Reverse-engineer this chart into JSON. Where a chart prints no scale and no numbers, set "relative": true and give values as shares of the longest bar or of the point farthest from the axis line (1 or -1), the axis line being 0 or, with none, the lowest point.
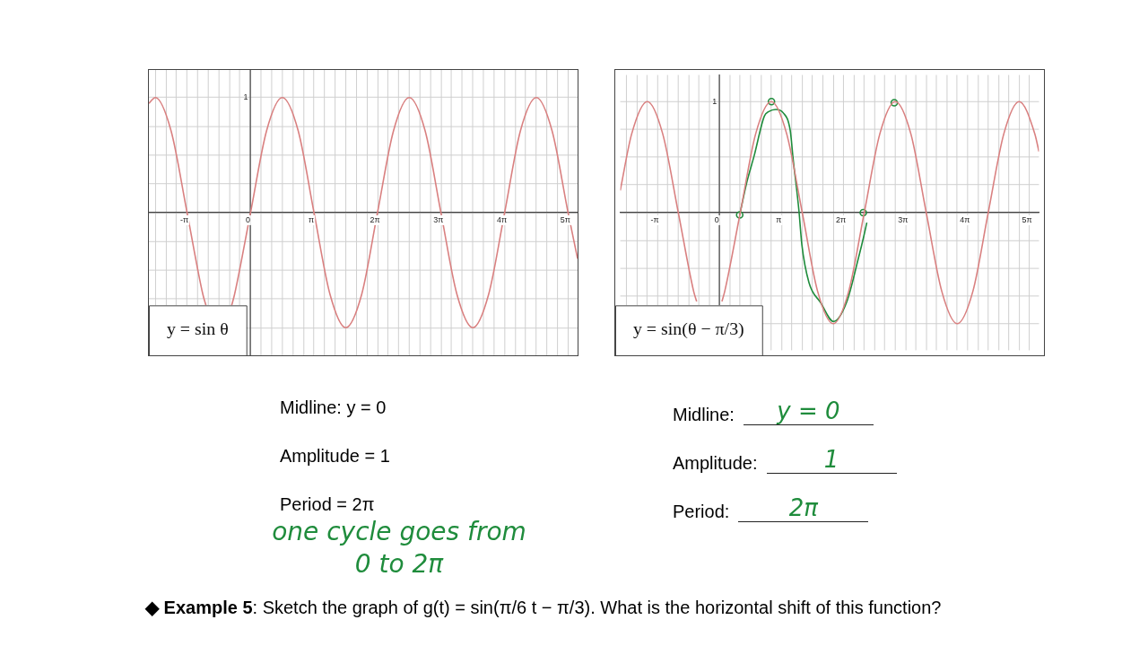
{
  "chart_data": [
    {
      "type": "line",
      "title": "y = sin θ",
      "xlim": [
        -5.03,
        16.18
      ],
      "relative": true,
      "grid": true,
      "xticks": [
        {
          "value": -4.7124,
          "label": null
        },
        {
          "value": -4.1888,
          "label": null
        },
        {
          "value": -3.6652,
          "label": null
        },
        {
          "value": -3.1416,
          "label": "-π"
        },
        {
          "value": -2.618,
          "label": null
        },
        {
          "value": -2.0944,
          "label": null
        },
        {
          "value": -1.5708,
          "label": null
        },
        {
          "value": -1.0472,
          "label": null
        },
        {
          "value": -0.5236,
          "label": null
        },
        0,
        {
          "value": 0.5236,
          "label": null
        },
        {
          "value": 1.0472,
          "label": null
        },
        {
          "value": 1.5708,
          "label": null
        },
        {
          "value": 2.0944,
          "label": null
        },
        {
          "value": 2.618,
          "label": null
        },
        {
          "value": 3.1416,
          "label": "π"
        },
        {
          "value": 3.6652,
          "label": null
        },
        {
          "value": 4.1888,
          "label": null
        },
        {
          "value": 4.7124,
          "label": null
        },
        {
          "value": 5.236,
          "label": null
        },
        {
          "value": 5.7596,
          "label": null
        },
        {
          "value": 6.2832,
          "label": "2π"
        },
        {
          "value": 6.8068,
          "label": null
        },
        {
          "value": 7.3304,
          "label": null
        },
        {
          "value": 7.854,
          "label": null
        },
        {
          "value": 8.3776,
          "label": null
        },
        {
          "value": 8.9012,
          "label": null
        },
        {
          "value": 9.4248,
          "label": "3π"
        },
        {
          "value": 9.9484,
          "label": null
        },
        {
          "value": 10.472,
          "label": null
        },
        {
          "value": 10.9956,
          "label": null
        },
        {
          "value": 11.5192,
          "label": null
        },
        {
          "value": 12.0428,
          "label": null
        },
        {
          "value": 12.5664,
          "label": "4π"
        },
        {
          "value": 13.09,
          "label": null
        },
        {
          "value": 13.6136,
          "label": null
        },
        {
          "value": 14.1372,
          "label": null
        },
        {
          "value": 14.6608,
          "label": null
        },
        {
          "value": 15.1844,
          "label": null
        },
        {
          "value": 15.708,
          "label": "5π"
        }
      ],
      "series": [
        {
          "color": "#d98080",
          "x": [
            -5.03,
            -4.71,
            -3.93,
            -3.14,
            -2.36,
            -2.2,
            -1.57,
            -0.94,
            -0.79,
            0,
            0.79,
            1.57,
            2.36,
            3.14,
            3.93,
            4.71,
            5.5,
            6.28,
            7.07,
            7.85,
            8.64,
            9.42,
            10.21,
            11,
            11.78,
            12.57,
            13.35,
            14.14,
            14.92,
            15.71,
            16.18
          ],
          "values": [
            0.95,
            1,
            0.71,
            0,
            -0.71,
            -0.81,
            null,
            -0.81,
            -0.71,
            0,
            0.71,
            1,
            0.71,
            0,
            -0.71,
            -1,
            -0.71,
            0,
            0.71,
            1,
            0.71,
            0,
            -0.71,
            -1,
            -0.71,
            0,
            0.71,
            1,
            0.71,
            0,
            -0.4
          ]
        }
      ],
      "annotations": [
        "Midline: y = 0",
        "Amplitude = 1",
        "Period = 2π",
        "one cycle goes from\n0 to 2π",
        "1"
      ]
    },
    {
      "type": "line",
      "title": "y = sin(θ − π/3)",
      "xlim": [
        -5.03,
        16.18
      ],
      "relative": true,
      "grid": true,
      "xticks": [
        {
          "value": -4.7124,
          "label": null
        },
        {
          "value": -4.1888,
          "label": null
        },
        {
          "value": -3.6652,
          "label": null
        },
        {
          "value": -3.1416,
          "label": "-π"
        },
        {
          "value": -2.618,
          "label": null
        },
        {
          "value": -2.0944,
          "label": null
        },
        {
          "value": -1.5708,
          "label": null
        },
        {
          "value": -1.0472,
          "label": null
        },
        {
          "value": -0.5236,
          "label": null
        },
        0,
        {
          "value": 0.5236,
          "label": null
        },
        {
          "value": 1.0472,
          "label": null
        },
        {
          "value": 1.5708,
          "label": null
        },
        {
          "value": 2.0944,
          "label": null
        },
        {
          "value": 2.618,
          "label": null
        },
        {
          "value": 3.1416,
          "label": "π"
        },
        {
          "value": 3.6652,
          "label": null
        },
        {
          "value": 4.1888,
          "label": null
        },
        {
          "value": 4.7124,
          "label": null
        },
        {
          "value": 5.236,
          "label": null
        },
        {
          "value": 5.7596,
          "label": null
        },
        {
          "value": 6.2832,
          "label": "2π"
        },
        {
          "value": 6.8068,
          "label": null
        },
        {
          "value": 7.3304,
          "label": null
        },
        {
          "value": 7.854,
          "label": null
        },
        {
          "value": 8.3776,
          "label": null
        },
        {
          "value": 8.9012,
          "label": null
        },
        {
          "value": 9.4248,
          "label": "3π"
        },
        {
          "value": 9.9484,
          "label": null
        },
        {
          "value": 10.472,
          "label": null
        },
        {
          "value": 10.9956,
          "label": null
        },
        {
          "value": 11.5192,
          "label": null
        },
        {
          "value": 12.0428,
          "label": null
        },
        {
          "value": 12.5664,
          "label": "4π"
        },
        {
          "value": 13.09,
          "label": null
        },
        {
          "value": 13.6136,
          "label": null
        },
        {
          "value": 14.1372,
          "label": null
        },
        {
          "value": 14.6608,
          "label": null
        },
        {
          "value": 15.1844,
          "label": null
        },
        {
          "value": 15.708,
          "label": "5π"
        }
      ],
      "series": [
        {
          "color": "#d98080",
          "x": [
            -5.03,
            -4.45,
            -3.66,
            -2.88,
            -2.09,
            -1.31,
            -1.16,
            -0.52,
            0.12,
            0.26,
            1.05,
            1.83,
            2.62,
            3.4,
            4.19,
            4.97,
            5.76,
            6.54,
            7.33,
            8.12,
            8.9,
            9.69,
            10.47,
            11.26,
            12.04,
            12.83,
            13.61,
            14.4,
            15.18,
            15.97,
            16.18
          ],
          "values": [
            0.2,
            0.71,
            1,
            0.71,
            0,
            -0.71,
            -0.8,
            null,
            -0.8,
            -0.71,
            0,
            0.71,
            1,
            0.71,
            0,
            -0.71,
            -1,
            -0.71,
            0,
            0.71,
            1,
            0.71,
            0,
            -0.71,
            -1,
            -0.71,
            0,
            0.71,
            1,
            0.71,
            0.55
          ]
        },
        {
          "color": "#1f8c3c",
          "x": [
            1.02,
            1.39,
            1.75,
            2.27,
            2.49,
            2.85,
            3.22,
            3.58,
            3.73,
            4.02,
            4.17,
            4.53,
            5.12,
            5.77,
            6.43,
            7.02,
            7.31,
            7.46
          ],
          "values": [
            -0.02,
            0.28,
            0.51,
            0.87,
            0.91,
            0.93,
            0.9,
            0.74,
            0.48,
            0.02,
            -0.29,
            -0.63,
            -0.81,
            -0.98,
            -0.81,
            -0.42,
            -0.21,
            -0.09
          ]
        },
        {
          "type": "scatter",
          "color": "#1f8c3c",
          "x": [
            1.02,
            2.63,
            7.28,
            8.85
          ],
          "values": [
            -0.02,
            1,
            0,
            0.99
          ]
        }
      ],
      "annotations": [
        "Midline:",
        "y = 0",
        "Amplitude:",
        "1",
        "Period:",
        "2π",
        "1"
      ]
    },
    {
      "type": "other",
      "annotations": [
        "◆ Example 5: Sketch the graph of g(t) = sin(π/6 t − π/3).  What is the horizontal shift of this function?"
      ]
    }
  ]
}
